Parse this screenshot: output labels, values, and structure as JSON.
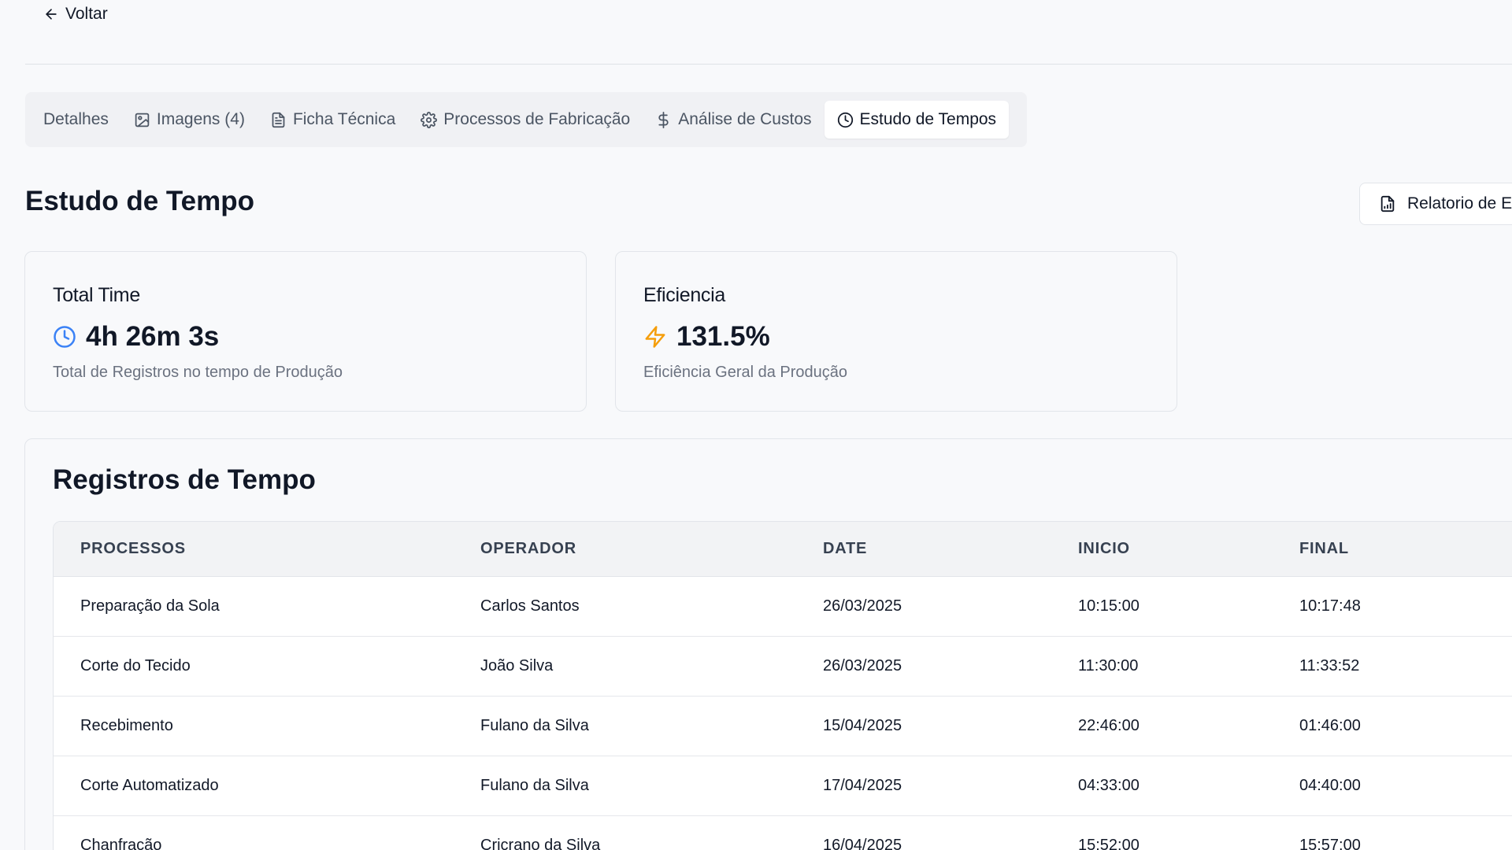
{
  "nav": {
    "back_label": "Voltar"
  },
  "tabs": [
    {
      "label": "Detalhes",
      "icon": ""
    },
    {
      "label": "Imagens (4)",
      "icon": "image-icon"
    },
    {
      "label": "Ficha Técnica",
      "icon": "file-text-icon"
    },
    {
      "label": "Processos de Fabricação",
      "icon": "gear-icon"
    },
    {
      "label": "Análise de Custos",
      "icon": "dollar-icon"
    },
    {
      "label": "Estudo de Tempos",
      "icon": "clock-icon"
    }
  ],
  "active_tab": "Estudo de Tempos",
  "header": {
    "title": "Estudo de Tempo",
    "report_button_label": "Relatorio de Ef"
  },
  "cards": {
    "total_time": {
      "title": "Total Time",
      "value": "4h 26m 3s",
      "description": "Total de Registros no tempo de Produção",
      "icon": "clock-icon",
      "icon_color": "#3b82f6"
    },
    "efficiency": {
      "title": "Eficiencia",
      "value": "131.5%",
      "description": "Eficiência Geral da Produção",
      "icon": "lightning-icon",
      "icon_color": "#f59e0b"
    }
  },
  "records": {
    "title": "Registros de Tempo",
    "columns": [
      "PROCESSOS",
      "OPERADOR",
      "DATE",
      "INICIO",
      "FINAL"
    ],
    "rows": [
      [
        "Preparação da Sola",
        "Carlos Santos",
        "26/03/2025",
        "10:15:00",
        "10:17:48"
      ],
      [
        "Corte do Tecido",
        "João Silva",
        "26/03/2025",
        "11:30:00",
        "11:33:52"
      ],
      [
        "Recebimento",
        "Fulano da Silva",
        "15/04/2025",
        "22:46:00",
        "01:46:00"
      ],
      [
        "Corte Automatizado",
        "Fulano da Silva",
        "17/04/2025",
        "04:33:00",
        "04:40:00"
      ],
      [
        "Chanfração",
        "Cricrano da Silva",
        "16/04/2025",
        "15:52:00",
        "15:57:00"
      ]
    ]
  }
}
